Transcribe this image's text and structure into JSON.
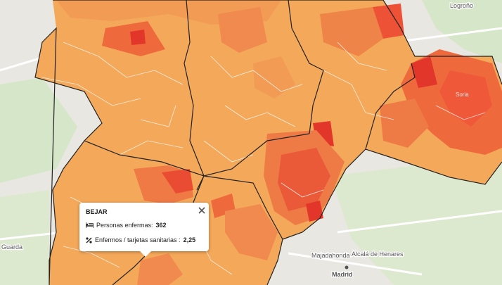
{
  "map": {
    "places": [
      "Logroño",
      "Soria",
      "Guarda",
      "Majadahonda",
      "Alcalá de Henares",
      "Madrid"
    ]
  },
  "popup": {
    "title": "BEJAR",
    "fields": [
      {
        "label": "Personas enfermas:",
        "value": 362
      },
      {
        "label": "Enfermos / tarjetas sanitarias :",
        "value": "2,25"
      }
    ]
  }
}
